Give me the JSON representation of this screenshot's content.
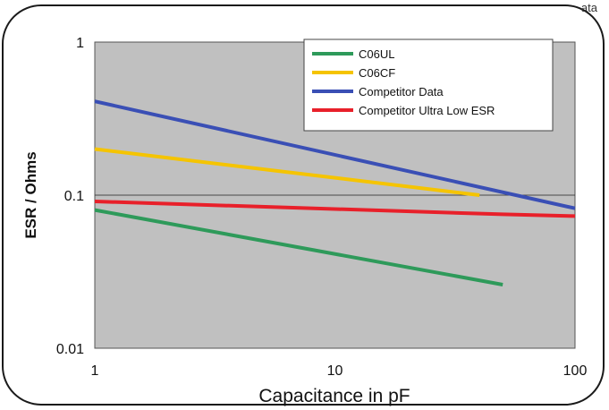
{
  "corner_fragment": "ata",
  "chart_data": {
    "type": "line",
    "xscale": "log",
    "yscale": "log",
    "xlim": [
      1,
      100
    ],
    "ylim": [
      0.01,
      1
    ],
    "xlabel": "Capacitance in pF",
    "ylabel": "ESR / Ohms",
    "xticks": [
      "1",
      "10",
      "100"
    ],
    "yticks": [
      "1",
      "0.1",
      "0.01"
    ],
    "x_tick_values": [
      1,
      10,
      100
    ],
    "y_tick_values": [
      1,
      0.1,
      0.01
    ],
    "grid": "horizontal at 0.1",
    "legend_position": "top-right",
    "background_color": "#c0c0c0",
    "series": [
      {
        "name": "C06UL",
        "color": "#2e9a5a",
        "x": [
          1,
          50
        ],
        "y": [
          0.08,
          0.026
        ]
      },
      {
        "name": "C06CF",
        "color": "#f5c400",
        "x": [
          1,
          40
        ],
        "y": [
          0.2,
          0.1
        ]
      },
      {
        "name": "Competitor Data",
        "color": "#3a4fb5",
        "x": [
          1,
          100
        ],
        "y": [
          0.41,
          0.082
        ]
      },
      {
        "name": "Competitor Ultra Low ESR",
        "color": "#e8202a",
        "x": [
          1,
          50,
          100
        ],
        "y": [
          0.091,
          0.075,
          0.073
        ]
      }
    ]
  }
}
